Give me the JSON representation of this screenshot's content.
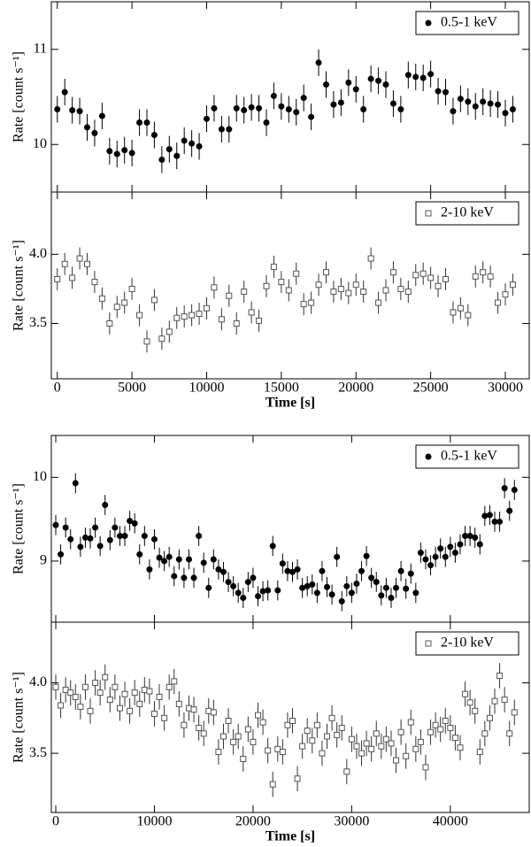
{
  "chart_data": [
    {
      "type": "scatter",
      "ylabel": "Rate [count s⁻¹]",
      "xtick_labels": false,
      "legend": "upper right",
      "xlim": [
        -400,
        31600
      ],
      "ylim": [
        9.5,
        11.5
      ],
      "xticks": [
        0,
        5000,
        10000,
        15000,
        20000,
        25000,
        30000
      ],
      "yticks": [
        10,
        11
      ],
      "x": [
        0,
        500,
        1000,
        1500,
        2000,
        2500,
        3000,
        3500,
        4000,
        4500,
        5000,
        5500,
        6000,
        6500,
        7000,
        7500,
        8000,
        8500,
        9000,
        9500,
        10000,
        10500,
        11000,
        11500,
        12000,
        12500,
        13000,
        13500,
        14000,
        14500,
        15000,
        15500,
        16000,
        16500,
        17000,
        17500,
        18000,
        18500,
        19000,
        19500,
        20000,
        20500,
        21000,
        21500,
        22000,
        22500,
        23000,
        23500,
        24000,
        24500,
        25000,
        25500,
        26000,
        26500,
        27000,
        27500,
        28000,
        28500,
        29000,
        29500,
        30000,
        30500
      ],
      "series": [
        {
          "name": "0.5-1 keV",
          "color": "#000000",
          "marker": "circle",
          "filled": true,
          "error": 0.14,
          "values": [
            10.37,
            10.55,
            10.36,
            10.35,
            10.18,
            10.12,
            10.3,
            9.93,
            9.9,
            9.94,
            9.91,
            10.23,
            10.23,
            10.1,
            9.84,
            9.95,
            9.88,
            10.04,
            10.01,
            9.98,
            10.27,
            10.38,
            10.16,
            10.16,
            10.38,
            10.36,
            10.39,
            10.38,
            10.23,
            10.51,
            10.4,
            10.37,
            10.34,
            10.49,
            10.29,
            10.86,
            10.63,
            10.42,
            10.44,
            10.65,
            10.58,
            10.37,
            10.69,
            10.67,
            10.63,
            10.43,
            10.37,
            10.73,
            10.71,
            10.7,
            10.74,
            10.56,
            10.55,
            10.35,
            10.48,
            10.45,
            10.4,
            10.45,
            10.43,
            10.42,
            10.33,
            10.37
          ]
        }
      ]
    },
    {
      "type": "scatter",
      "ylabel": "Rate [count s⁻¹]",
      "xlabel": "Time [s]",
      "legend": "upper right",
      "xlim": [
        -400,
        31600
      ],
      "ylim": [
        3.1,
        4.45
      ],
      "xticks": [
        0,
        5000,
        10000,
        15000,
        20000,
        25000,
        30000
      ],
      "yticks": [
        3.5,
        {
          "value": 4,
          "label": "4.0"
        }
      ],
      "x": [
        0,
        500,
        1000,
        1500,
        2000,
        2500,
        3000,
        3500,
        4000,
        4500,
        5000,
        5500,
        6000,
        6500,
        7000,
        7500,
        8000,
        8500,
        9000,
        9500,
        10000,
        10500,
        11000,
        11500,
        12000,
        12500,
        13000,
        13500,
        14000,
        14500,
        15000,
        15500,
        16000,
        16500,
        17000,
        17500,
        18000,
        18500,
        19000,
        19500,
        20000,
        20500,
        21000,
        21500,
        22000,
        22500,
        23000,
        23500,
        24000,
        24500,
        25000,
        25500,
        26000,
        26500,
        27000,
        27500,
        28000,
        28500,
        29000,
        29500,
        30000,
        30500
      ],
      "series": [
        {
          "name": "2-10 keV",
          "color": "#555555",
          "marker": "square",
          "filled": false,
          "error": 0.08,
          "values": [
            3.82,
            3.93,
            3.83,
            3.97,
            3.93,
            3.8,
            3.68,
            3.5,
            3.62,
            3.65,
            3.75,
            3.56,
            3.37,
            3.67,
            3.39,
            3.44,
            3.54,
            3.55,
            3.56,
            3.57,
            3.61,
            3.76,
            3.53,
            3.7,
            3.5,
            3.73,
            3.58,
            3.52,
            3.77,
            3.91,
            3.8,
            3.74,
            3.86,
            3.64,
            3.65,
            3.78,
            3.87,
            3.73,
            3.75,
            3.72,
            3.78,
            3.73,
            3.97,
            3.65,
            3.74,
            3.87,
            3.75,
            3.73,
            3.85,
            3.86,
            3.83,
            3.77,
            3.82,
            3.58,
            3.61,
            3.56,
            3.84,
            3.87,
            3.84,
            3.65,
            3.71,
            3.78
          ]
        }
      ]
    },
    {
      "type": "scatter",
      "ylabel": "Rate [count s⁻¹]",
      "xtick_labels": false,
      "legend": "upper right",
      "xlim": [
        -450,
        48000
      ],
      "ylim": [
        8.27,
        10.5
      ],
      "xticks": [
        0,
        10000,
        20000,
        30000,
        40000
      ],
      "yticks": [
        9,
        10
      ],
      "x": [
        0,
        500,
        1000,
        1500,
        2000,
        2500,
        3000,
        3500,
        4000,
        4500,
        5000,
        5500,
        6000,
        6500,
        7000,
        7500,
        8000,
        8500,
        9000,
        9500,
        10000,
        10500,
        11000,
        11500,
        12000,
        12500,
        13000,
        13500,
        14000,
        14500,
        15000,
        15500,
        16000,
        16500,
        17000,
        17500,
        18000,
        18500,
        19000,
        19500,
        20000,
        20500,
        21000,
        21500,
        22000,
        22500,
        23000,
        23500,
        24000,
        24500,
        25000,
        25500,
        26000,
        26500,
        27000,
        27500,
        28000,
        28500,
        29000,
        29500,
        30000,
        30500,
        31000,
        31500,
        32000,
        32500,
        33000,
        33500,
        34000,
        34500,
        35000,
        35500,
        36000,
        36500,
        37000,
        37500,
        38000,
        38500,
        39000,
        39500,
        40000,
        40500,
        41000,
        41500,
        42000,
        42500,
        43000,
        43500,
        44000,
        44500,
        45000,
        45500,
        46000,
        46500
      ],
      "series": [
        {
          "name": "0.5-1 keV",
          "color": "#000000",
          "marker": "circle",
          "filled": true,
          "error": 0.12,
          "values": [
            9.43,
            9.08,
            9.4,
            9.26,
            9.93,
            9.17,
            9.28,
            9.27,
            9.4,
            9.18,
            9.67,
            9.25,
            9.4,
            9.3,
            9.3,
            9.48,
            9.45,
            9.08,
            9.3,
            8.9,
            9.26,
            9.04,
            9.0,
            9.05,
            8.82,
            9.02,
            8.8,
            9.02,
            8.8,
            9.3,
            8.98,
            8.68,
            9.02,
            8.9,
            8.87,
            8.75,
            8.7,
            8.62,
            8.56,
            8.75,
            8.8,
            8.58,
            8.64,
            8.65,
            9.18,
            8.65,
            8.97,
            8.88,
            8.87,
            8.9,
            8.68,
            8.7,
            8.72,
            8.62,
            8.88,
            8.69,
            8.6,
            9.05,
            8.52,
            8.7,
            8.62,
            8.73,
            8.88,
            9.06,
            8.8,
            8.75,
            8.59,
            8.68,
            8.56,
            8.68,
            8.88,
            8.67,
            8.85,
            8.62,
            9.1,
            9.02,
            8.95,
            9.05,
            9.15,
            9.05,
            9.17,
            9.1,
            9.2,
            9.3,
            9.3,
            9.28,
            9.2,
            9.54,
            9.55,
            9.47,
            9.47,
            9.87,
            9.6,
            9.85
          ]
        }
      ]
    },
    {
      "type": "scatter",
      "ylabel": "Rate [count s⁻¹]",
      "xlabel": "Time [s]",
      "legend": "upper right",
      "xlim": [
        -450,
        48000
      ],
      "ylim": [
        3.08,
        4.43
      ],
      "xticks": [
        0,
        10000,
        20000,
        30000,
        40000
      ],
      "yticks": [
        3.5,
        {
          "value": 4,
          "label": "4.0"
        }
      ],
      "x": [
        0,
        500,
        1000,
        1500,
        2000,
        2500,
        3000,
        3500,
        4000,
        4500,
        5000,
        5500,
        6000,
        6500,
        7000,
        7500,
        8000,
        8500,
        9000,
        9500,
        10000,
        10500,
        11000,
        11500,
        12000,
        12500,
        13000,
        13500,
        14000,
        14500,
        15000,
        15500,
        16000,
        16500,
        17000,
        17500,
        18000,
        18500,
        19000,
        19500,
        20000,
        20500,
        21000,
        21500,
        22000,
        22500,
        23000,
        23500,
        24000,
        24500,
        25000,
        25500,
        26000,
        26500,
        27000,
        27500,
        28000,
        28500,
        29000,
        29500,
        30000,
        30500,
        31000,
        31500,
        32000,
        32500,
        33000,
        33500,
        34000,
        34500,
        35000,
        35500,
        36000,
        36500,
        37000,
        37500,
        38000,
        38500,
        39000,
        39500,
        40000,
        40500,
        41000,
        41500,
        42000,
        42500,
        43000,
        43500,
        44000,
        44500,
        45000,
        45500,
        46000,
        46500
      ],
      "series": [
        {
          "name": "2-10 keV",
          "color": "#555555",
          "marker": "square",
          "filled": false,
          "error": 0.09,
          "values": [
            3.97,
            3.84,
            3.95,
            3.93,
            3.9,
            3.83,
            3.97,
            3.8,
            4.0,
            3.93,
            4.04,
            3.88,
            3.97,
            3.82,
            3.92,
            3.8,
            3.93,
            3.85,
            3.95,
            3.94,
            3.78,
            3.9,
            3.75,
            3.97,
            4.01,
            3.85,
            3.7,
            3.82,
            3.81,
            3.68,
            3.64,
            3.8,
            3.79,
            3.51,
            3.62,
            3.73,
            3.58,
            3.62,
            3.46,
            3.67,
            3.58,
            3.77,
            3.72,
            3.52,
            3.28,
            3.53,
            3.51,
            3.7,
            3.73,
            3.32,
            3.55,
            3.66,
            3.59,
            3.7,
            3.5,
            3.62,
            3.75,
            3.63,
            3.68,
            3.37,
            3.6,
            3.55,
            3.5,
            3.57,
            3.53,
            3.64,
            3.55,
            3.6,
            3.57,
            3.45,
            3.65,
            3.48,
            3.72,
            3.53,
            3.58,
            3.4,
            3.65,
            3.7,
            3.67,
            3.73,
            3.68,
            3.61,
            3.54,
            3.92,
            3.86,
            3.8,
            3.51,
            3.64,
            3.75,
            3.87,
            4.05,
            3.88,
            3.64,
            3.79
          ]
        }
      ]
    }
  ]
}
